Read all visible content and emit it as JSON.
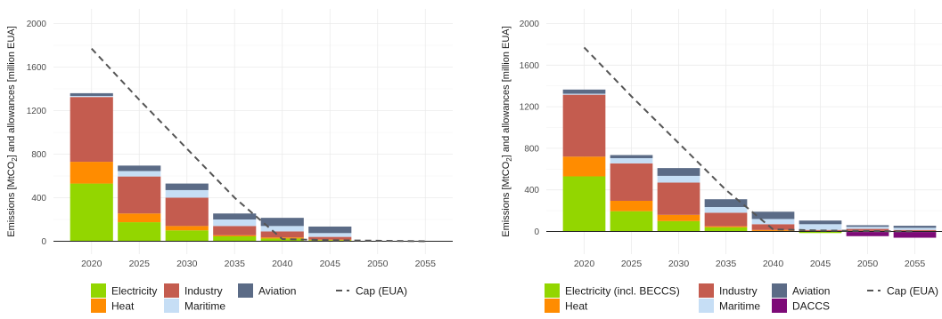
{
  "colors": {
    "electricity": "#93d600",
    "heat": "#ff8c00",
    "industry": "#c45c4f",
    "maritime": "#c6def5",
    "aviation": "#5b6b86",
    "daccs": "#7d0a77",
    "cap": "#555555"
  },
  "chart_data": [
    {
      "type": "bar",
      "stacked": true,
      "ylabel_parts": [
        "Emissions [MtCO",
        "2",
        "] and allowances [million EUA]"
      ],
      "ylim": [
        0,
        2000
      ],
      "y_ticks": [
        0,
        400,
        800,
        1200,
        1600,
        2000
      ],
      "grid": true,
      "legend_position": "bottom",
      "categories": [
        "2020",
        "2025",
        "2030",
        "2035",
        "2040",
        "2045",
        "2050",
        "2055"
      ],
      "series": [
        {
          "name": "Electricity",
          "key": "electricity",
          "values": [
            530,
            175,
            100,
            45,
            25,
            10,
            0,
            0
          ]
        },
        {
          "name": "Heat",
          "key": "heat",
          "values": [
            200,
            80,
            40,
            10,
            10,
            5,
            0,
            0
          ]
        },
        {
          "name": "Industry",
          "key": "industry",
          "values": [
            595,
            340,
            260,
            85,
            55,
            25,
            0,
            0
          ]
        },
        {
          "name": "Maritime",
          "key": "maritime",
          "values": [
            10,
            50,
            70,
            60,
            50,
            35,
            0,
            0
          ]
        },
        {
          "name": "Aviation",
          "key": "aviation",
          "values": [
            25,
            50,
            60,
            55,
            75,
            60,
            0,
            0
          ]
        }
      ],
      "cap": {
        "name": "Cap (EUA)",
        "x": [
          "2020",
          "2025",
          "2030",
          "2035",
          "2040",
          "2045",
          "2050",
          "2055"
        ],
        "values": [
          1770,
          1300,
          850,
          400,
          20,
          10,
          5,
          0
        ]
      },
      "legend": [
        {
          "label": "Electricity",
          "key": "electricity",
          "kind": "box"
        },
        {
          "label": "Heat",
          "key": "heat",
          "kind": "box"
        },
        {
          "label": "Industry",
          "key": "industry",
          "kind": "box"
        },
        {
          "label": "Maritime",
          "key": "maritime",
          "kind": "box"
        },
        {
          "label": "Aviation",
          "key": "aviation",
          "kind": "box"
        },
        {
          "label": "Cap (EUA)",
          "key": "cap",
          "kind": "line"
        }
      ]
    },
    {
      "type": "bar",
      "stacked": true,
      "ylabel_parts": [
        "Emissions [MtCO",
        "2",
        "] and allowances [million EUA]"
      ],
      "ylim": [
        -200,
        2000
      ],
      "y_ticks": [
        0,
        400,
        800,
        1200,
        1600,
        2000
      ],
      "grid": true,
      "legend_position": "bottom",
      "categories": [
        "2020",
        "2025",
        "2030",
        "2035",
        "2040",
        "2045",
        "2050",
        "2055"
      ],
      "series": [
        {
          "name": "Electricity (incl. BECCS)",
          "key": "electricity",
          "values": [
            530,
            195,
            100,
            40,
            5,
            -15,
            -5,
            -5
          ]
        },
        {
          "name": "Heat",
          "key": "heat",
          "values": [
            190,
            100,
            60,
            10,
            10,
            5,
            5,
            5
          ]
        },
        {
          "name": "Industry",
          "key": "industry",
          "values": [
            595,
            360,
            310,
            130,
            55,
            10,
            20,
            10
          ]
        },
        {
          "name": "Maritime",
          "key": "maritime",
          "values": [
            10,
            50,
            65,
            55,
            50,
            55,
            20,
            20
          ]
        },
        {
          "name": "Aviation",
          "key": "aviation",
          "values": [
            40,
            30,
            75,
            75,
            70,
            35,
            15,
            20
          ]
        },
        {
          "name": "DACCS",
          "key": "daccs",
          "values": [
            0,
            0,
            0,
            0,
            0,
            0,
            -40,
            -55
          ]
        }
      ],
      "cap": {
        "name": "Cap (EUA)",
        "x": [
          "2020",
          "2025",
          "2030",
          "2035",
          "2040",
          "2045",
          "2050",
          "2055"
        ],
        "values": [
          1770,
          1300,
          850,
          400,
          20,
          10,
          5,
          0
        ]
      },
      "legend": [
        {
          "label": "Electricity (incl. BECCS)",
          "key": "electricity",
          "kind": "box"
        },
        {
          "label": "Heat",
          "key": "heat",
          "kind": "box"
        },
        {
          "label": "Industry",
          "key": "industry",
          "kind": "box"
        },
        {
          "label": "Maritime",
          "key": "maritime",
          "kind": "box"
        },
        {
          "label": "Aviation",
          "key": "aviation",
          "kind": "box"
        },
        {
          "label": "DACCS",
          "key": "daccs",
          "kind": "box"
        },
        {
          "label": "Cap (EUA)",
          "key": "cap",
          "kind": "line"
        }
      ]
    }
  ]
}
